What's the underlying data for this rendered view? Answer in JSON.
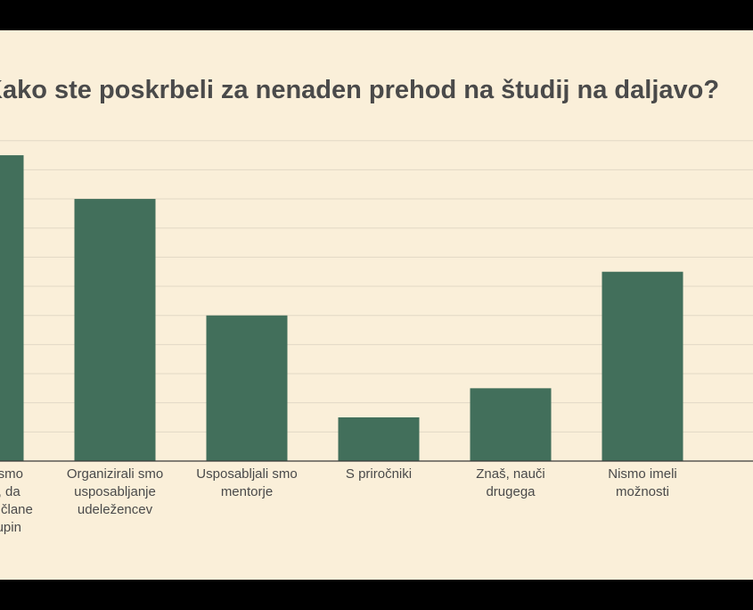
{
  "colors": {
    "background": "#faefd9",
    "bar": "#426f5b",
    "grid": "#e2d8c5",
    "text": "#4a4a4a",
    "frame": "#000000"
  },
  "chart_data": {
    "type": "bar",
    "title": "Kako ste poskrbeli za nenaden prehod na študij na daljavo?",
    "xlabel": "",
    "ylabel": "",
    "grid": true,
    "legend": "none",
    "ylim": [
      0,
      22
    ],
    "categories": [
      [
        "Animirali smo",
        "mentorje, da",
        "usposobijo člane",
        "svojih skupin"
      ],
      [
        "Organizirali smo",
        "usposabljanje",
        "udeležencev"
      ],
      [
        "Usposabljali smo",
        "mentorje"
      ],
      [
        "S priročniki"
      ],
      [
        "Znaš, nauči",
        "drugega"
      ],
      [
        "Nismo imeli",
        "možnosti"
      ]
    ],
    "values": [
      21,
      18,
      10,
      3,
      5,
      13
    ]
  }
}
